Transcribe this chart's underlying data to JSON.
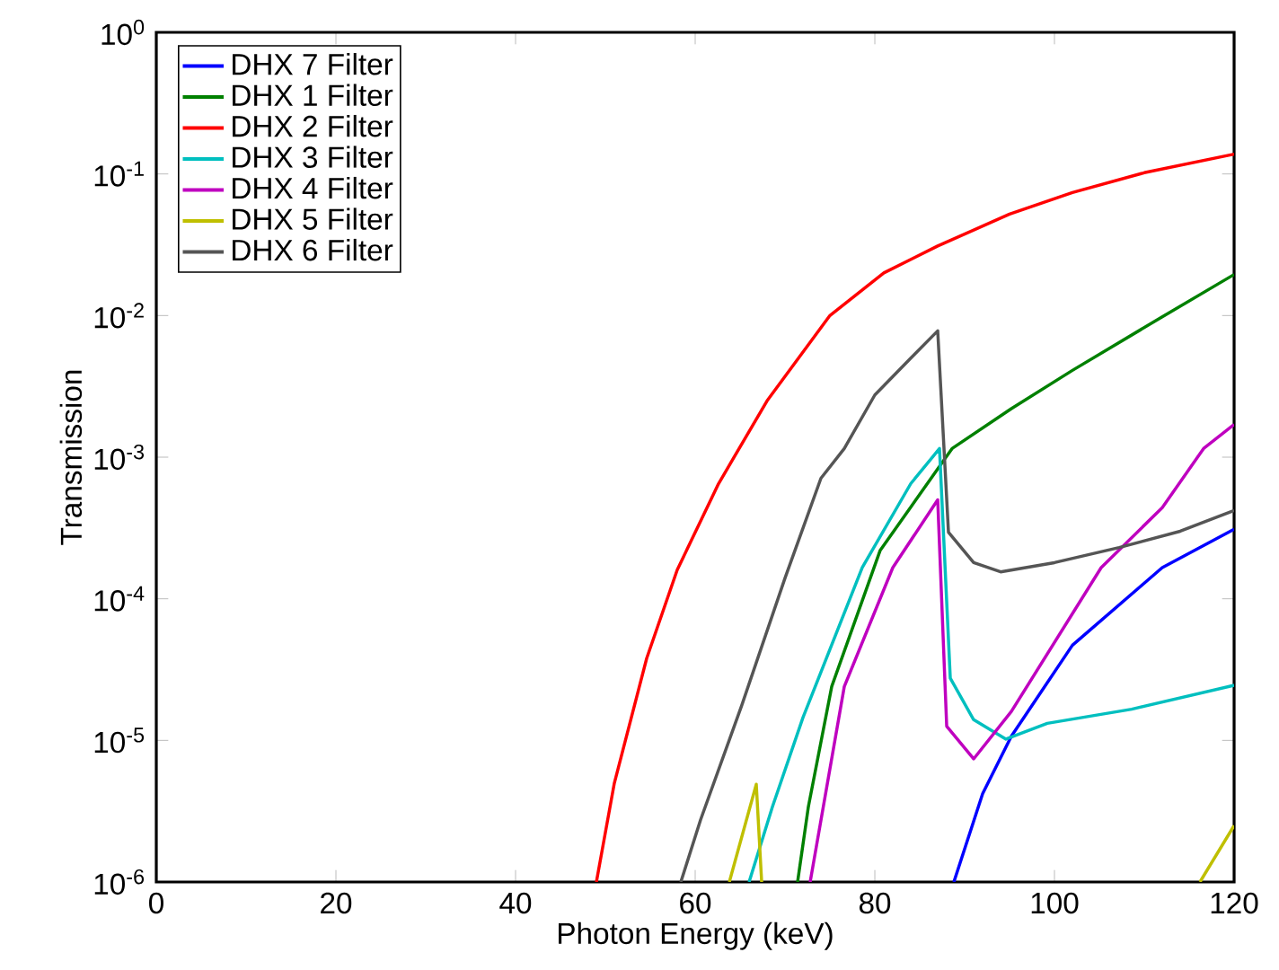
{
  "chart_data": {
    "type": "line",
    "xlabel": "Photon Energy (keV)",
    "ylabel": "Transmission",
    "log": "y",
    "grid": false,
    "legend": "top left",
    "marker": "none",
    "line_style": "solid",
    "xlim": [
      0,
      120
    ],
    "xticks": [
      0,
      20,
      40,
      60,
      80,
      100,
      120
    ],
    "ylim": [
      1e-06,
      1
    ],
    "yticks": [
      {
        "value": 1e-06,
        "label": "10$^{-6}$"
      },
      {
        "value": 1e-05,
        "label": "10$^{-5}$"
      },
      {
        "value": 0.0001,
        "label": "10$^{-4}$"
      },
      {
        "value": 0.001,
        "label": "10$^{-3}$"
      },
      {
        "value": 0.01,
        "label": "10$^{-2}$"
      },
      {
        "value": 0.1,
        "label": "10$^{-1}$"
      },
      {
        "value": 1,
        "label": "10$^{0}$"
      }
    ],
    "series": [
      {
        "name": "DHX 7 Filter",
        "color": "#0000ff",
        "x": [
          88.8,
          92,
          95.2,
          102,
          112,
          120
        ],
        "values": [
          1e-06,
          4.2e-06,
          1.07e-05,
          4.7e-05,
          0.000166,
          0.00031
        ]
      },
      {
        "name": "DHX 1 Filter",
        "color": "#008000",
        "x": [
          71.4,
          72.6,
          75.2,
          80.6,
          88.6,
          95.2,
          102,
          112,
          120
        ],
        "values": [
          1e-06,
          3.4e-06,
          2.4e-05,
          0.00022,
          0.00115,
          0.0022,
          0.0041,
          0.0098,
          0.0195
        ]
      },
      {
        "name": "DHX 2 Filter",
        "color": "#ff0000",
        "x": [
          49,
          51,
          54.6,
          58,
          62.6,
          68,
          75,
          81,
          87,
          95,
          102,
          110,
          120
        ],
        "values": [
          1e-06,
          5e-06,
          3.8e-05,
          0.00016,
          0.00065,
          0.0025,
          0.01,
          0.02,
          0.031,
          0.052,
          0.074,
          0.102,
          0.138
        ]
      },
      {
        "name": "DHX 3 Filter",
        "color": "#00bfbf",
        "x": [
          66,
          68.6,
          72,
          78.6,
          84,
          87.2,
          88.4,
          91,
          94.6,
          99.2,
          108.6,
          120
        ],
        "values": [
          1e-06,
          3.4e-06,
          1.45e-05,
          0.000166,
          0.00065,
          0.00115,
          2.75e-05,
          1.4e-05,
          1.02e-05,
          1.32e-05,
          1.66e-05,
          2.45e-05
        ]
      },
      {
        "name": "DHX 4 Filter",
        "color": "#bf00bf",
        "x": [
          72.8,
          76.6,
          82,
          87,
          88,
          91,
          95.2,
          105.2,
          112,
          116.6,
          120
        ],
        "values": [
          1e-06,
          2.4e-05,
          0.000166,
          0.0005,
          1.26e-05,
          7.4e-06,
          1.6e-05,
          0.000166,
          0.00044,
          0.00115,
          0.0017
        ]
      },
      {
        "name": "DHX 5 Filter",
        "color": "#bfbf00",
        "x": [
          63.8,
          66.8,
          67.4,
          90,
          116.2,
          120
        ],
        "values": [
          1e-06,
          4.9e-06,
          1e-06,
          null,
          1e-06,
          2.5e-06
        ]
      },
      {
        "name": "DHX 6 Filter",
        "color": "#555555",
        "x": [
          58.4,
          60.6,
          65.2,
          70,
          74,
          76.6,
          80,
          84,
          87,
          88.2,
          91,
          94,
          100,
          107.2,
          114,
          120
        ],
        "values": [
          1e-06,
          2.75e-06,
          1.78e-05,
          0.00014,
          0.00071,
          0.00115,
          0.00275,
          0.005,
          0.0078,
          0.000295,
          0.00018,
          0.000155,
          0.00018,
          0.00023,
          0.0003,
          0.00042
        ]
      }
    ]
  }
}
